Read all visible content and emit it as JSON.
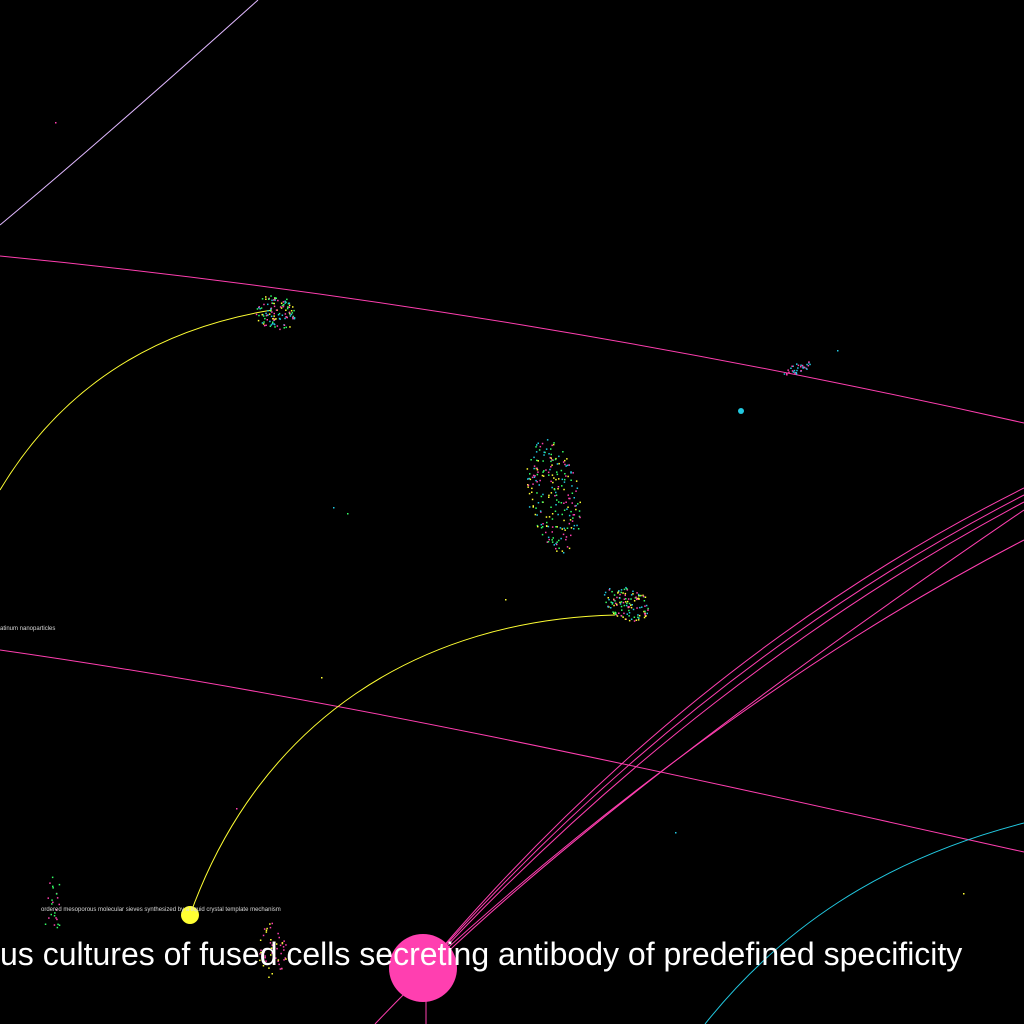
{
  "labels": {
    "main": "us cultures of fused cells secreting antibody of predefined specificity",
    "sieves": "ordered mesoporous molecular sieves synthesized by a liquid crystal template mechanism",
    "platinum": "atinum nanoparticles"
  },
  "colors": {
    "background": "#000000",
    "magenta": "#ff3fb0",
    "yellow": "#ffff33",
    "cyan": "#22c8e0",
    "green": "#33ff66",
    "lilac": "#e0b8ff"
  },
  "nodes": [
    {
      "name": "antibody-paper-node",
      "color": "magenta"
    },
    {
      "name": "mesoporous-sieves-node",
      "color": "yellow"
    },
    {
      "name": "cyan-node",
      "color": "cyan"
    }
  ],
  "clusters": [
    {
      "name": "cluster-upper-left",
      "colors": [
        "yellow",
        "green",
        "magenta",
        "cyan"
      ]
    },
    {
      "name": "cluster-upper-right",
      "colors": [
        "cyan",
        "magenta"
      ]
    },
    {
      "name": "cluster-center",
      "colors": [
        "green",
        "magenta",
        "yellow",
        "cyan"
      ]
    },
    {
      "name": "cluster-right-middle",
      "colors": [
        "yellow",
        "cyan",
        "green",
        "magenta"
      ]
    },
    {
      "name": "cluster-lower-left",
      "colors": [
        "green",
        "magenta"
      ]
    },
    {
      "name": "cluster-bottom",
      "colors": [
        "magenta",
        "yellow"
      ]
    }
  ]
}
